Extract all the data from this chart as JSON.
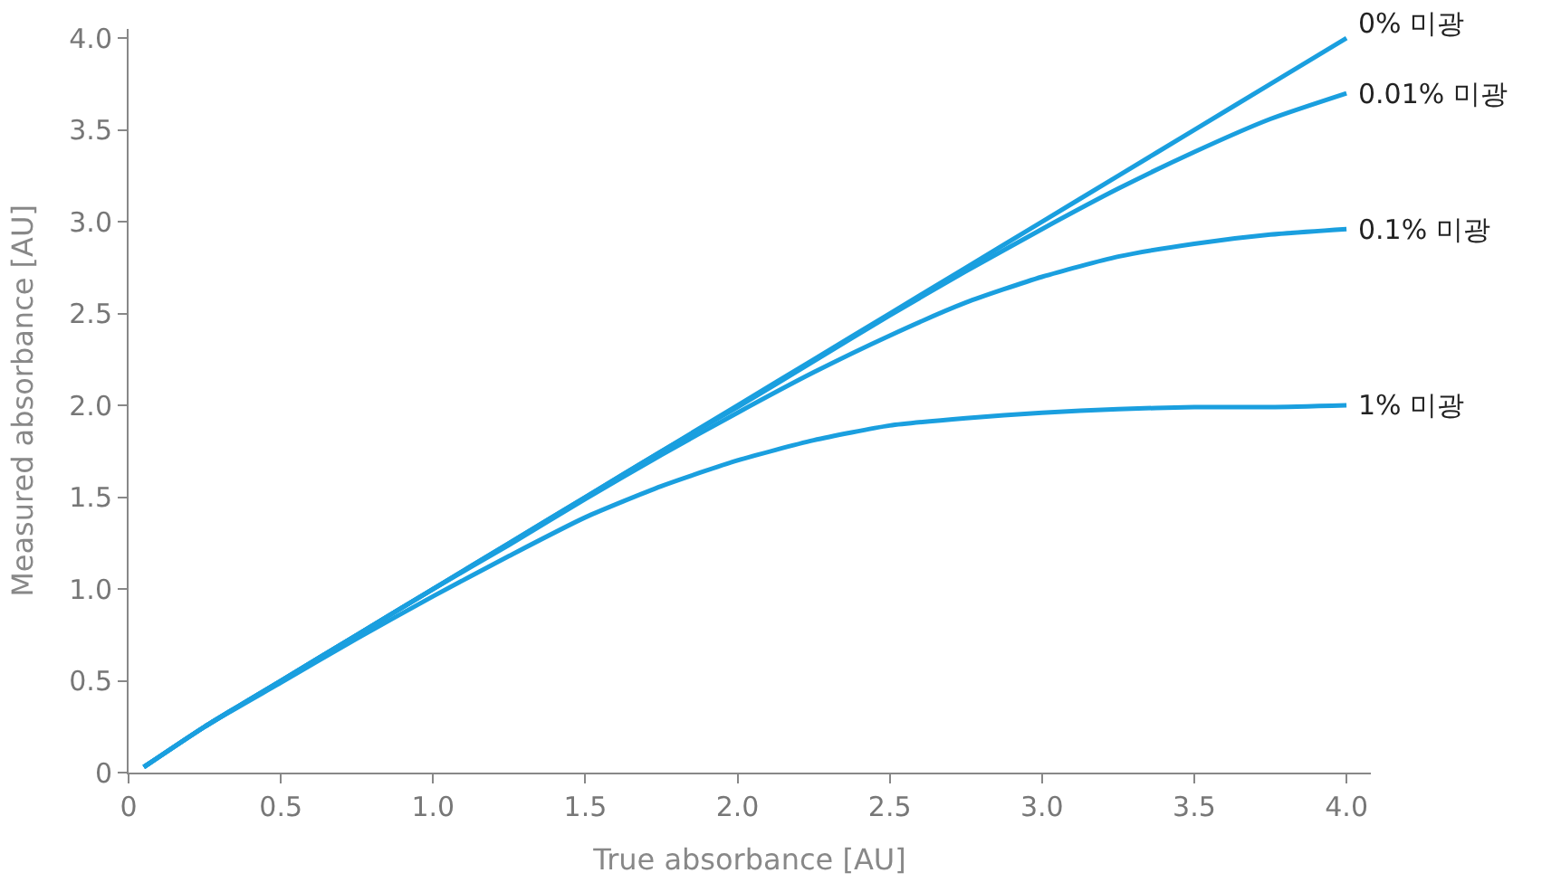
{
  "chart_data": {
    "type": "line",
    "xlabel": "True absorbance [AU]",
    "ylabel": "Measured absorbance [AU]",
    "x": [
      0.05,
      0.25,
      0.5,
      0.75,
      1.0,
      1.25,
      1.5,
      1.75,
      2.0,
      2.25,
      2.5,
      2.75,
      3.0,
      3.25,
      3.5,
      3.75,
      4.0
    ],
    "series": [
      {
        "name": "0% 미광",
        "color": "#1a9fdf",
        "values": [
          0.03,
          0.25,
          0.5,
          0.75,
          1.0,
          1.25,
          1.5,
          1.75,
          2.0,
          2.25,
          2.5,
          2.75,
          3.0,
          3.25,
          3.5,
          3.75,
          4.0
        ]
      },
      {
        "name": "0.01% 미광",
        "color": "#1a9fdf",
        "values": [
          0.03,
          0.25,
          0.5,
          0.75,
          1.0,
          1.25,
          1.5,
          1.75,
          1.99,
          2.24,
          2.49,
          2.73,
          2.96,
          3.18,
          3.38,
          3.56,
          3.7
        ]
      },
      {
        "name": "0.1% 미광",
        "color": "#1a9fdf",
        "values": [
          0.03,
          0.25,
          0.5,
          0.75,
          1.0,
          1.24,
          1.49,
          1.73,
          1.96,
          2.18,
          2.38,
          2.56,
          2.7,
          2.81,
          2.88,
          2.93,
          2.96
        ]
      },
      {
        "name": "1% 미광",
        "color": "#1a9fdf",
        "values": [
          0.03,
          0.25,
          0.49,
          0.73,
          0.96,
          1.18,
          1.39,
          1.56,
          1.7,
          1.81,
          1.89,
          1.93,
          1.96,
          1.98,
          1.99,
          1.99,
          2.0
        ]
      }
    ],
    "xlim": [
      0,
      4.08
    ],
    "ylim": [
      0,
      4.05
    ],
    "xticks": [
      0,
      0.5,
      {
        "value": 1,
        "label": "1.0"
      },
      1.5,
      {
        "value": 2,
        "label": "2.0"
      },
      2.5,
      {
        "value": 3,
        "label": "3.0"
      },
      3.5,
      {
        "value": 4,
        "label": "4.0"
      }
    ],
    "yticks": [
      0,
      0.5,
      {
        "value": 1,
        "label": "1.0"
      },
      1.5,
      {
        "value": 2,
        "label": "2.0"
      },
      2.5,
      {
        "value": 3,
        "label": "3.0"
      },
      3.5,
      {
        "value": 4,
        "label": "4.0"
      }
    ],
    "legend": false,
    "marker": "none",
    "line_style": "solid"
  }
}
